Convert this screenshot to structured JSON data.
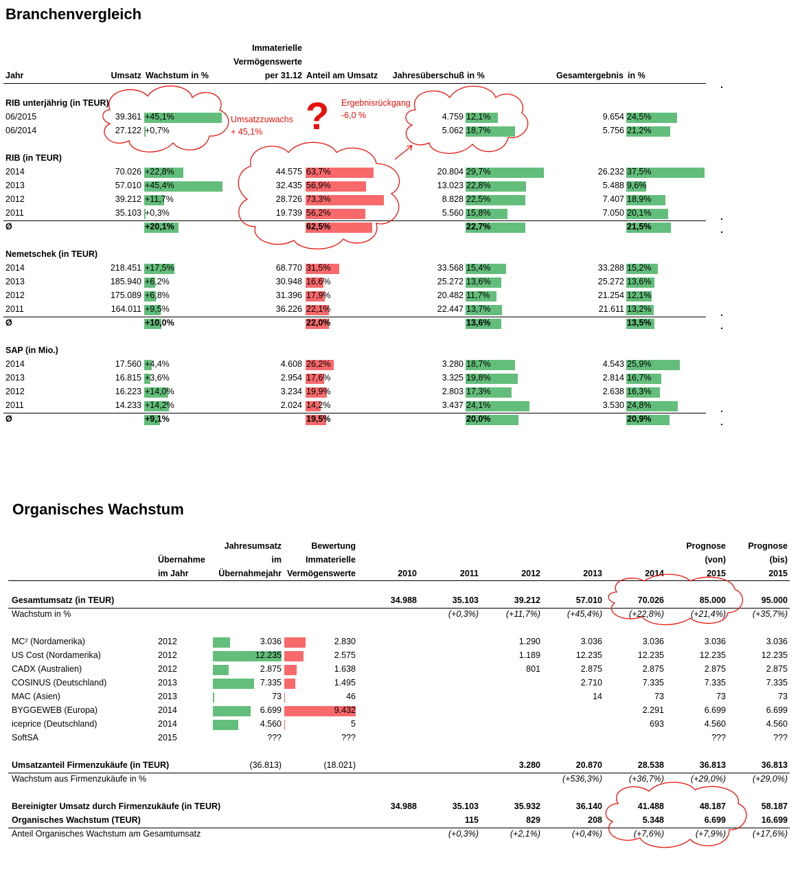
{
  "branchen": {
    "title": "Branchenvergleich",
    "headers": {
      "jahr": "Jahr",
      "umsatz": "Umsatz",
      "wachstum": "Wachstum in %",
      "immat_lines": [
        "Immaterielle",
        "Vermögenswerte",
        "per 31.12"
      ],
      "anteil": "Anteil am Umsatz",
      "jahresueberschuss": "Jahresüberschuß",
      "jue_pct": "in %",
      "gesamtergebnis": "Gesamtergebnis",
      "ge_pct": "in %"
    },
    "groups": [
      {
        "title": "RIB unterjährig (in TEUR)",
        "rows": [
          {
            "label": "06/2015",
            "umsatz": "39.361",
            "wachstum": "+45,1%",
            "w": 45.1,
            "immat": "",
            "anteil": "",
            "a": 0,
            "jue": "4.759",
            "juep": "12,1%",
            "j": 12.1,
            "ge": "9.654",
            "gep": "24,5%",
            "g": 24.5
          },
          {
            "label": "06/2014",
            "umsatz": "27.122",
            "wachstum": "+0,7%",
            "w": 0.7,
            "immat": "",
            "anteil": "",
            "a": 0,
            "jue": "5.062",
            "juep": "18,7%",
            "j": 18.7,
            "ge": "5.756",
            "gep": "21,2%",
            "g": 21.2
          }
        ]
      },
      {
        "title": "RIB (in TEUR)",
        "rows": [
          {
            "label": "2014",
            "umsatz": "70.026",
            "wachstum": "+22,8%",
            "w": 22.8,
            "immat": "44.575",
            "anteil": "63,7%",
            "a": 63.7,
            "jue": "20.804",
            "juep": "29,7%",
            "j": 29.7,
            "ge": "26.232",
            "gep": "37,5%",
            "g": 37.5
          },
          {
            "label": "2013",
            "umsatz": "57.010",
            "wachstum": "+45,4%",
            "w": 45.4,
            "immat": "32.435",
            "anteil": "56,9%",
            "a": 56.9,
            "jue": "13.023",
            "juep": "22,8%",
            "j": 22.8,
            "ge": "5.488",
            "gep": "9,6%",
            "g": 9.6
          },
          {
            "label": "2012",
            "umsatz": "39.212",
            "wachstum": "+11,7%",
            "w": 11.7,
            "immat": "28.726",
            "anteil": "73,3%",
            "a": 73.3,
            "jue": "8.828",
            "juep": "22,5%",
            "j": 22.5,
            "ge": "7.407",
            "gep": "18,9%",
            "g": 18.9
          },
          {
            "label": "2011",
            "umsatz": "35.103",
            "wachstum": "+0,3%",
            "w": 0.3,
            "immat": "19.739",
            "anteil": "56,2%",
            "a": 56.2,
            "jue": "5.560",
            "juep": "15,8%",
            "j": 15.8,
            "ge": "7.050",
            "gep": "20,1%",
            "g": 20.1
          }
        ],
        "avg": {
          "label": "Ø",
          "wachstum": "+20,1%",
          "w": 20.1,
          "anteil": "62,5%",
          "a": 62.5,
          "juep": "22,7%",
          "j": 22.7,
          "gep": "21,5%",
          "g": 21.5
        }
      },
      {
        "title": "Nemetschek (in TEUR)",
        "rows": [
          {
            "label": "2014",
            "umsatz": "218.451",
            "wachstum": "+17,5%",
            "w": 17.5,
            "immat": "68.770",
            "anteil": "31,5%",
            "a": 31.5,
            "jue": "33.568",
            "juep": "15,4%",
            "j": 15.4,
            "ge": "33.288",
            "gep": "15,2%",
            "g": 15.2
          },
          {
            "label": "2013",
            "umsatz": "185.940",
            "wachstum": "+6,2%",
            "w": 6.2,
            "immat": "30.948",
            "anteil": "16,6%",
            "a": 16.6,
            "jue": "25.272",
            "juep": "13,6%",
            "j": 13.6,
            "ge": "25.272",
            "gep": "13,6%",
            "g": 13.6
          },
          {
            "label": "2012",
            "umsatz": "175.089",
            "wachstum": "+6,8%",
            "w": 6.8,
            "immat": "31.396",
            "anteil": "17,9%",
            "a": 17.9,
            "jue": "20.482",
            "juep": "11,7%",
            "j": 11.7,
            "ge": "21.254",
            "gep": "12,1%",
            "g": 12.1
          },
          {
            "label": "2011",
            "umsatz": "164.011",
            "wachstum": "+9,5%",
            "w": 9.5,
            "immat": "36.226",
            "anteil": "22,1%",
            "a": 22.1,
            "jue": "22.447",
            "juep": "13,7%",
            "j": 13.7,
            "ge": "21.611",
            "gep": "13,2%",
            "g": 13.2
          }
        ],
        "avg": {
          "label": "Ø",
          "wachstum": "+10,0%",
          "w": 10.0,
          "anteil": "22,0%",
          "a": 22.0,
          "juep": "13,6%",
          "j": 13.6,
          "gep": "13,5%",
          "g": 13.5
        }
      },
      {
        "title": "SAP (in Mio.)",
        "rows": [
          {
            "label": "2014",
            "umsatz": "17.560",
            "wachstum": "+4,4%",
            "w": 4.4,
            "immat": "4.608",
            "anteil": "26,2%",
            "a": 26.2,
            "jue": "3.280",
            "juep": "18,7%",
            "j": 18.7,
            "ge": "4.543",
            "gep": "25,9%",
            "g": 25.9
          },
          {
            "label": "2013",
            "umsatz": "16.815",
            "wachstum": "+3,6%",
            "w": 3.6,
            "immat": "2.954",
            "anteil": "17,6%",
            "a": 17.6,
            "jue": "3.325",
            "juep": "19,8%",
            "j": 19.8,
            "ge": "2.814",
            "gep": "16,7%",
            "g": 16.7
          },
          {
            "label": "2012",
            "umsatz": "16.223",
            "wachstum": "+14,0%",
            "w": 14.0,
            "immat": "3.234",
            "anteil": "19,9%",
            "a": 19.9,
            "jue": "2.803",
            "juep": "17,3%",
            "j": 17.3,
            "ge": "2.638",
            "gep": "16,3%",
            "g": 16.3
          },
          {
            "label": "2011",
            "umsatz": "14.233",
            "wachstum": "+14,2%",
            "w": 14.2,
            "immat": "2.024",
            "anteil": "14,2%",
            "a": 14.2,
            "jue": "3.437",
            "juep": "24,1%",
            "j": 24.1,
            "ge": "3.530",
            "gep": "24,8%",
            "g": 24.8
          }
        ],
        "avg": {
          "label": "Ø",
          "wachstum": "+9,1%",
          "w": 9.1,
          "anteil": "19,5%",
          "a": 19.5,
          "juep": "20,0%",
          "j": 20.0,
          "gep": "20,9%",
          "g": 20.9
        }
      }
    ],
    "annotations": {
      "umsatzzuwachs": [
        "Umsatzzuwachs",
        "+ 45,1%"
      ],
      "ergebnis": [
        "Ergebnisrückgang",
        "-6,0 %"
      ],
      "question": "?"
    },
    "colors": {
      "positive": "#63be7b",
      "negative": "#f8696b",
      "annotation": "#e8120c"
    }
  },
  "organisch": {
    "title": "Organisches Wachstum",
    "headers": {
      "uebernahme": [
        "Übernahme",
        "im Jahr"
      ],
      "jahresumsatz": [
        "Jahresumsatz",
        "im",
        "Übernahmejahr"
      ],
      "bewertung": [
        "Bewertung",
        "Immaterielle",
        "Vermögenswerte"
      ],
      "years": [
        "2010",
        "2011",
        "2012",
        "2013",
        "2014"
      ],
      "prognose_von": [
        "Prognose",
        "(von)",
        "2015"
      ],
      "prognose_bis": [
        "Prognose",
        "(bis)",
        "2015"
      ]
    },
    "gesamtumsatz": {
      "label": "Gesamtumsatz (in TEUR)",
      "values": [
        "34.988",
        "35.103",
        "39.212",
        "57.010",
        "70.026",
        "85.000",
        "95.000"
      ]
    },
    "wachstum": {
      "label": "Wachstum in  %",
      "values": [
        "",
        "(+0,3%)",
        "(+11,7%)",
        "(+45,4%)",
        "(+22,8%)",
        "(+21,4%)",
        "(+35,7%)"
      ]
    },
    "acquisitions": [
      {
        "name": "MC² (Nordamerika)",
        "year": "2012",
        "umsatz": "3.036",
        "u": 3036,
        "bewertung": "2.830",
        "bw": 2830,
        "values": [
          "",
          "",
          "1.290",
          "3.036",
          "3.036",
          "3.036",
          "3.036"
        ]
      },
      {
        "name": "US Cost (Nordamerika)",
        "year": "2012",
        "umsatz": "12.235",
        "u": 12235,
        "bewertung": "2.575",
        "bw": 2575,
        "values": [
          "",
          "",
          "1.189",
          "12.235",
          "12.235",
          "12.235",
          "12.235"
        ]
      },
      {
        "name": "CADX (Australien)",
        "year": "2012",
        "umsatz": "2.875",
        "u": 2875,
        "bewertung": "1.638",
        "bw": 1638,
        "values": [
          "",
          "",
          "801",
          "2.875",
          "2.875",
          "2.875",
          "2.875"
        ]
      },
      {
        "name": "COSINUS (Deutschland)",
        "year": "2013",
        "umsatz": "7.335",
        "u": 7335,
        "bewertung": "1.495",
        "bw": 1495,
        "values": [
          "",
          "",
          "",
          "2.710",
          "7.335",
          "7.335",
          "7.335"
        ]
      },
      {
        "name": "MAC (Asien)",
        "year": "2013",
        "umsatz": "73",
        "u": 73,
        "bewertung": "46",
        "bw": 46,
        "values": [
          "",
          "",
          "",
          "14",
          "73",
          "73",
          "73"
        ]
      },
      {
        "name": "BYGGEWEB (Europa)",
        "year": "2014",
        "umsatz": "6.699",
        "u": 6699,
        "bewertung": "9.432",
        "bw": 9432,
        "values": [
          "",
          "",
          "",
          "",
          "2.291",
          "6.699",
          "6.699"
        ]
      },
      {
        "name": "iceprice (Deutschland)",
        "year": "2014",
        "umsatz": "4.560",
        "u": 4560,
        "bewertung": "5",
        "bw": 5,
        "values": [
          "",
          "",
          "",
          "",
          "693",
          "4.560",
          "4.560"
        ]
      },
      {
        "name": "SoftSA",
        "year": "2015",
        "umsatz": "???",
        "u": 0,
        "bewertung": "???",
        "bw": 0,
        "values": [
          "",
          "",
          "",
          "",
          "",
          "???",
          "???"
        ]
      }
    ],
    "umsatzanteil": {
      "label": "Umsatzanteil Firmenzukäufe (in TEUR)",
      "umsatz": "(36.813)",
      "bewertung": "(18.021)",
      "values": [
        "",
        "",
        "3.280",
        "20.870",
        "28.538",
        "36.813",
        "36.813"
      ]
    },
    "wachstum_fz": {
      "label": "Wachstum aus Firmenzukäufe in %",
      "values": [
        "",
        "",
        "",
        "(+536,3%)",
        "(+36,7%)",
        "(+29,0%)",
        "(+29,0%)"
      ]
    },
    "bereinigt": {
      "label": "Bereinigter Umsatz durch Firmenzukäufe (in TEUR)",
      "values": [
        "34.988",
        "35.103",
        "35.932",
        "36.140",
        "41.488",
        "48.187",
        "58.187"
      ]
    },
    "organisch": {
      "label": "Organisches Wachstum (TEUR)",
      "values": [
        "",
        "115",
        "829",
        "208",
        "5.348",
        "6.699",
        "16.699"
      ]
    },
    "anteil": {
      "label": "Anteil Organisches Wachstum am Gesamtumsatz",
      "values": [
        "",
        "(+0,3%)",
        "(+2,1%)",
        "(+0,4%)",
        "(+7,6%)",
        "(+7,9%)",
        "(+17,6%)"
      ]
    }
  }
}
